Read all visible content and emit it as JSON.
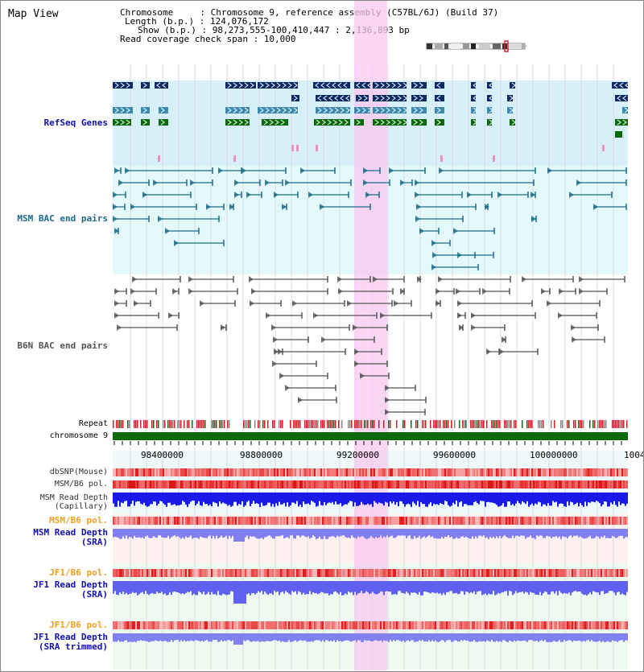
{
  "header": {
    "title": "Map View",
    "chromosome_line": "Chromosome     : Chromosome 9, reference assembly (C57BL/6J) (Build 37)",
    "length_line": "Length (b.p.) : 124,076,172",
    "show_line": "Show (b.p.) : 98,273,555-100,410,447 : 2,136,893 bp",
    "coverage_line": "Read coverage check span : 10,000"
  },
  "tracks": {
    "refseq": "RefSeq Genes",
    "msm_bac": "MSM BAC end pairs",
    "b6n_bac": "B6N BAC end pairs",
    "repeat": "Repeat",
    "chromosome": "chromosome 9",
    "dbsnp": "dbSNP(Mouse)",
    "msm_b6_pol": "MSM/B6 pol.",
    "msm_depth_cap_1": "MSM Read Depth",
    "msm_depth_cap_2": "(Capillary)",
    "msm_b6_pol_sra": "MSM/B6 pol.",
    "msm_depth_sra_1": "MSM Read Depth",
    "msm_depth_sra_2": "(SRA)",
    "jf1_b6_pol": "JF1/B6 pol.",
    "jf1_depth_sra_1": "JF1 Read Depth",
    "jf1_depth_sra_2": "(SRA)",
    "jf1_b6_pol_trim": "JF1/B6 pol.",
    "jf1_depth_trim_1": "JF1 Read Depth",
    "jf1_depth_trim_2": "(SRA trimmed)"
  },
  "axis": {
    "ticks": [
      "98400000",
      "98800000",
      "99200000",
      "99600000",
      "100000000",
      "1004"
    ]
  },
  "colors": {
    "refseq_dark": "#0a2a66",
    "refseq_mid": "#3a8ab0",
    "refseq_green": "#0a6a0a",
    "refseq_bg": "#d8f0fa",
    "msm_bg": "#e4fafa",
    "msm_pair": "#1a6a8a",
    "b6n_pair": "#555555",
    "highlight": "#f8c8f0",
    "chromosome": "#0a6a0a",
    "pol_red": "#f06060",
    "depth_blue": "#1a1ae8",
    "depth_light": "#8080f0",
    "label_blue": "#1010b0",
    "label_orange": "#f0a020",
    "label_teal": "#1a6a8a"
  }
}
